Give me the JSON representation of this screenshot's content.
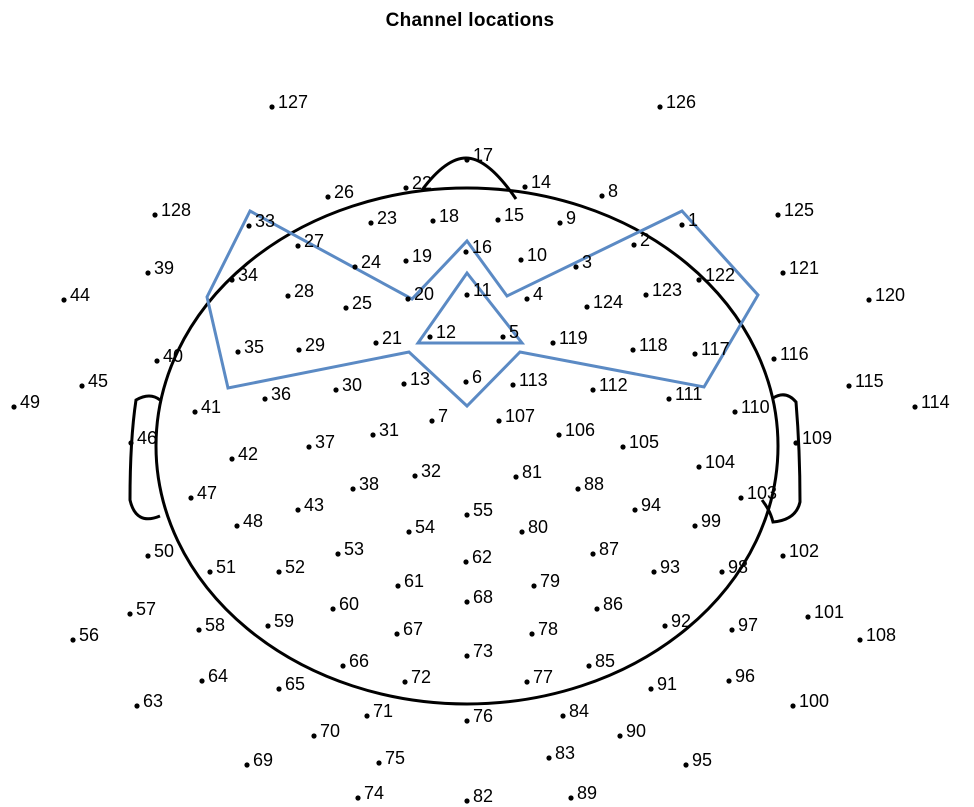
{
  "title": "Channel locations",
  "colors": {
    "outline": "#000000",
    "region_outline": "#5b8ac4",
    "dot": "#000000",
    "label": "#000000"
  },
  "channels": [
    {
      "label": "127"
    },
    {
      "label": "126"
    },
    {
      "label": "17"
    },
    {
      "label": "22"
    },
    {
      "label": "14"
    },
    {
      "label": "8"
    },
    {
      "label": "26"
    },
    {
      "label": "128"
    },
    {
      "label": "33"
    },
    {
      "label": "23"
    },
    {
      "label": "18"
    },
    {
      "label": "15"
    },
    {
      "label": "9"
    },
    {
      "label": "1"
    },
    {
      "label": "125"
    },
    {
      "label": "27"
    },
    {
      "label": "16"
    },
    {
      "label": "2"
    },
    {
      "label": "39"
    },
    {
      "label": "34"
    },
    {
      "label": "24"
    },
    {
      "label": "19"
    },
    {
      "label": "10"
    },
    {
      "label": "3"
    },
    {
      "label": "122"
    },
    {
      "label": "121"
    },
    {
      "label": "44"
    },
    {
      "label": "28"
    },
    {
      "label": "20"
    },
    {
      "label": "11"
    },
    {
      "label": "4"
    },
    {
      "label": "123"
    },
    {
      "label": "120"
    },
    {
      "label": "25"
    },
    {
      "label": "124"
    },
    {
      "label": "35"
    },
    {
      "label": "29"
    },
    {
      "label": "21"
    },
    {
      "label": "12"
    },
    {
      "label": "5"
    },
    {
      "label": "119"
    },
    {
      "label": "118"
    },
    {
      "label": "117"
    },
    {
      "label": "40"
    },
    {
      "label": "116"
    },
    {
      "label": "45"
    },
    {
      "label": "13"
    },
    {
      "label": "6"
    },
    {
      "label": "113"
    },
    {
      "label": "115"
    },
    {
      "label": "30"
    },
    {
      "label": "112"
    },
    {
      "label": "49"
    },
    {
      "label": "36"
    },
    {
      "label": "111"
    },
    {
      "label": "114"
    },
    {
      "label": "41"
    },
    {
      "label": "7"
    },
    {
      "label": "107"
    },
    {
      "label": "110"
    },
    {
      "label": "31"
    },
    {
      "label": "106"
    },
    {
      "label": "46"
    },
    {
      "label": "37"
    },
    {
      "label": "105"
    },
    {
      "label": "109"
    },
    {
      "label": "42"
    },
    {
      "label": "104"
    },
    {
      "label": "32"
    },
    {
      "label": "81"
    },
    {
      "label": "38"
    },
    {
      "label": "88"
    },
    {
      "label": "47"
    },
    {
      "label": "103"
    },
    {
      "label": "43"
    },
    {
      "label": "94"
    },
    {
      "label": "55"
    },
    {
      "label": "48"
    },
    {
      "label": "54"
    },
    {
      "label": "80"
    },
    {
      "label": "99"
    },
    {
      "label": "53"
    },
    {
      "label": "87"
    },
    {
      "label": "50"
    },
    {
      "label": "62"
    },
    {
      "label": "102"
    },
    {
      "label": "51"
    },
    {
      "label": "52"
    },
    {
      "label": "93"
    },
    {
      "label": "98"
    },
    {
      "label": "61"
    },
    {
      "label": "79"
    },
    {
      "label": "68"
    },
    {
      "label": "60"
    },
    {
      "label": "86"
    },
    {
      "label": "57"
    },
    {
      "label": "101"
    },
    {
      "label": "59"
    },
    {
      "label": "92"
    },
    {
      "label": "56"
    },
    {
      "label": "58"
    },
    {
      "label": "67"
    },
    {
      "label": "78"
    },
    {
      "label": "97"
    },
    {
      "label": "108"
    },
    {
      "label": "73"
    },
    {
      "label": "66"
    },
    {
      "label": "85"
    },
    {
      "label": "64"
    },
    {
      "label": "72"
    },
    {
      "label": "77"
    },
    {
      "label": "96"
    },
    {
      "label": "65"
    },
    {
      "label": "91"
    },
    {
      "label": "63"
    },
    {
      "label": "100"
    },
    {
      "label": "71"
    },
    {
      "label": "84"
    },
    {
      "label": "76"
    },
    {
      "label": "70"
    },
    {
      "label": "90"
    },
    {
      "label": "83"
    },
    {
      "label": "69"
    },
    {
      "label": "75"
    },
    {
      "label": "95"
    },
    {
      "label": "74"
    },
    {
      "label": "89"
    },
    {
      "label": "82"
    }
  ]
}
